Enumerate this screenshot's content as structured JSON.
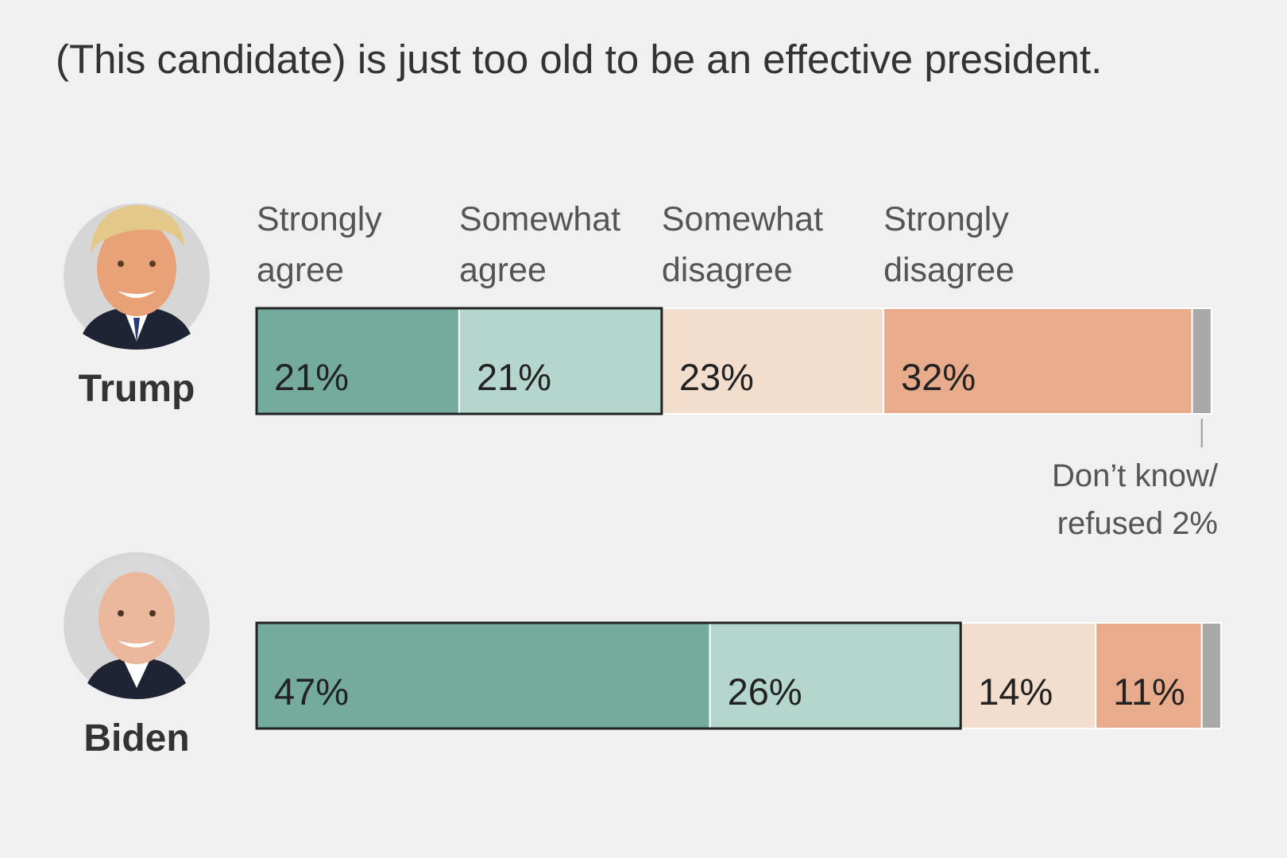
{
  "chart_data": {
    "type": "bar",
    "orientation": "horizontal-stacked",
    "title": "(This candidate) is just too old to be an effective president.",
    "categories": [
      {
        "line1": "Strongly",
        "line2": "agree",
        "color": "#74ab9d"
      },
      {
        "line1": "Somewhat",
        "line2": "agree",
        "color": "#b5d6cc"
      },
      {
        "line1": "Somewhat",
        "line2": "disagree",
        "color": "#f3ddcd"
      },
      {
        "line1": "Strongly",
        "line2": "disagree",
        "color": "#e8ab8c"
      },
      {
        "line1": "Don’t know/",
        "line2": "refused",
        "color": "#a9a9a9"
      }
    ],
    "series": [
      {
        "name": "Trump",
        "values": [
          21,
          21,
          23,
          32,
          2
        ],
        "labels": [
          "21%",
          "21%",
          "23%",
          "32%",
          ""
        ],
        "dont_know_note": {
          "line1": "Don’t know/",
          "line2": "refused 2%"
        }
      },
      {
        "name": "Biden",
        "values": [
          47,
          26,
          14,
          11,
          2
        ],
        "labels": [
          "47%",
          "26%",
          "14%",
          "11%",
          ""
        ]
      }
    ],
    "xlim": [
      0,
      100
    ]
  }
}
